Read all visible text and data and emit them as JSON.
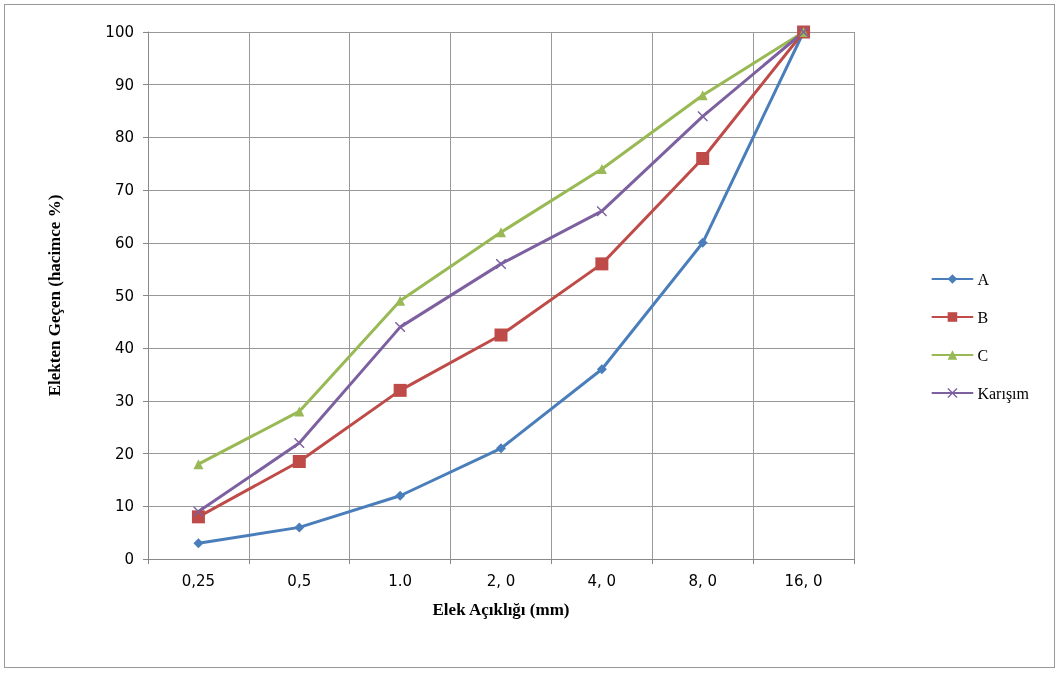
{
  "chart_data": {
    "type": "line",
    "xlabel": "Elek Açıklığı (mm)",
    "ylabel": "Elekten Geçen (hacimce %)",
    "categories": [
      "0,25",
      "0,5",
      "1.0",
      "2, 0",
      "4, 0",
      "8, 0",
      "16, 0"
    ],
    "series": [
      {
        "name": "A",
        "color": "#4a7ebb",
        "marker": "diamond",
        "values": [
          3,
          6,
          12,
          21,
          36,
          60,
          100
        ]
      },
      {
        "name": "B",
        "color": "#be4b48",
        "marker": "square",
        "values": [
          8,
          18.5,
          32,
          42.5,
          56,
          76,
          100
        ]
      },
      {
        "name": "C",
        "color": "#98b954",
        "marker": "triangle",
        "values": [
          18,
          28,
          49,
          62,
          74,
          88,
          100
        ]
      },
      {
        "name": "Karışım",
        "color": "#7d60a0",
        "marker": "cross",
        "values": [
          9,
          22,
          44,
          56,
          66,
          84,
          100
        ]
      }
    ],
    "ylim": [
      0,
      100
    ],
    "yticks": [
      0,
      10,
      20,
      30,
      40,
      50,
      60,
      70,
      80,
      90,
      100
    ],
    "grid": true,
    "legend": "right",
    "line_style": "solid"
  }
}
